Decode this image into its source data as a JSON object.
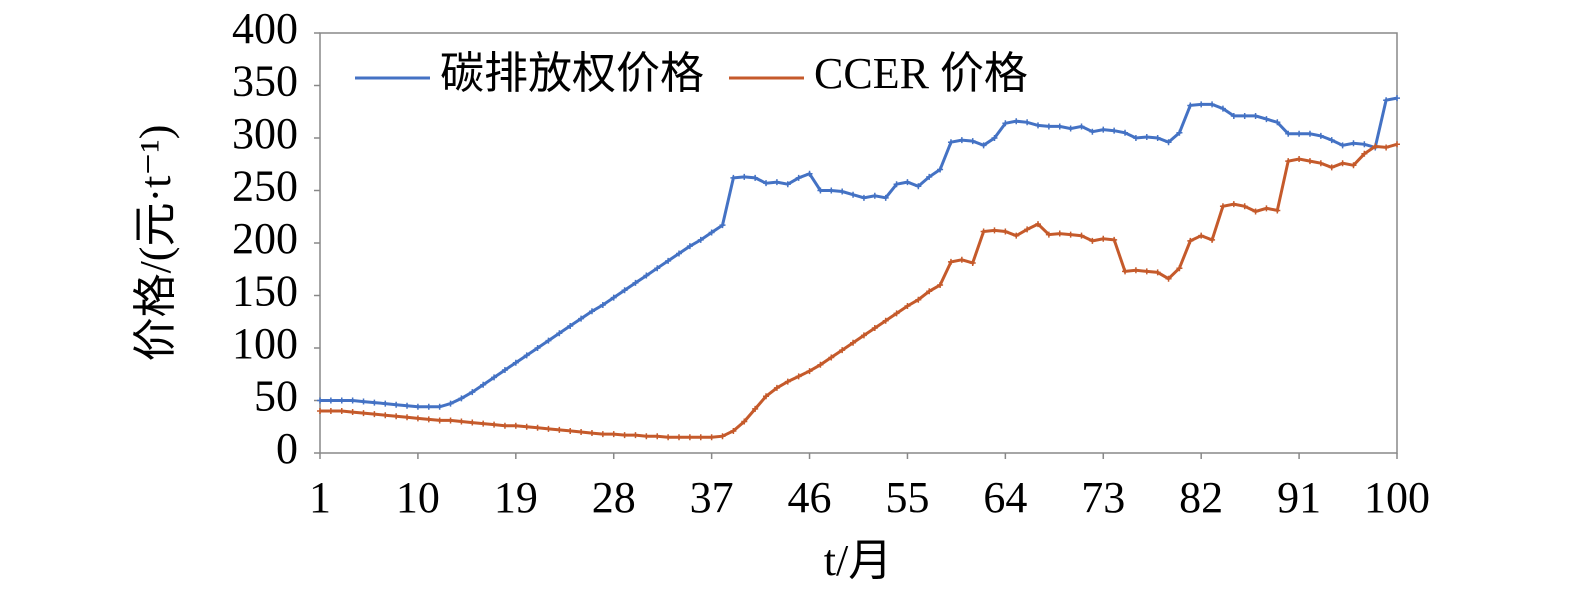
{
  "chart_data": {
    "type": "line",
    "xlabel": "t/月",
    "ylabel": "价格/(元·t⁻¹)",
    "x": [
      1,
      2,
      3,
      4,
      5,
      6,
      7,
      8,
      9,
      10,
      11,
      12,
      13,
      14,
      15,
      16,
      17,
      18,
      19,
      20,
      21,
      22,
      23,
      24,
      25,
      26,
      27,
      28,
      29,
      30,
      31,
      32,
      33,
      34,
      35,
      36,
      37,
      38,
      39,
      40,
      41,
      42,
      43,
      44,
      45,
      46,
      47,
      48,
      49,
      50,
      51,
      52,
      53,
      54,
      55,
      56,
      57,
      58,
      59,
      60,
      61,
      62,
      63,
      64,
      65,
      66,
      67,
      68,
      69,
      70,
      71,
      72,
      73,
      74,
      75,
      76,
      77,
      78,
      79,
      80,
      81,
      82,
      83,
      84,
      85,
      86,
      87,
      88,
      89,
      90,
      91,
      92,
      93,
      94,
      95,
      96,
      97,
      98,
      99,
      100
    ],
    "series": [
      {
        "name": "碳排放权价格",
        "color": "#4472c4",
        "values": [
          50,
          50,
          50,
          50,
          49,
          48,
          47,
          46,
          45,
          44,
          44,
          44,
          47,
          52,
          58,
          65,
          72,
          79,
          86,
          93,
          100,
          107,
          114,
          121,
          128,
          135,
          141,
          148,
          155,
          162,
          169,
          176,
          183,
          190,
          197,
          203,
          210,
          217,
          262,
          263,
          262,
          257,
          258,
          256,
          262,
          266,
          250,
          250,
          249,
          246,
          243,
          245,
          243,
          256,
          258,
          254,
          263,
          270,
          296,
          298,
          297,
          293,
          300,
          314,
          316,
          315,
          312,
          311,
          311,
          309,
          311,
          306,
          308,
          307,
          305,
          300,
          301,
          300,
          296,
          305,
          331,
          332,
          332,
          328,
          321,
          321,
          321,
          318,
          315,
          304,
          304,
          304,
          302,
          298,
          293,
          295,
          294,
          291,
          336,
          338
        ]
      },
      {
        "name": "CCER 价格",
        "color": "#c55a2b",
        "values": [
          40,
          40,
          40,
          39,
          38,
          37,
          36,
          35,
          34,
          33,
          32,
          31,
          31,
          30,
          29,
          28,
          27,
          26,
          26,
          25,
          24,
          23,
          22,
          21,
          20,
          19,
          18,
          18,
          17,
          17,
          16,
          16,
          15,
          15,
          15,
          15,
          15,
          16,
          21,
          30,
          42,
          54,
          62,
          68,
          73,
          78,
          84,
          91,
          98,
          105,
          112,
          119,
          126,
          133,
          140,
          146,
          154,
          160,
          182,
          184,
          181,
          211,
          212,
          211,
          207,
          213,
          218,
          208,
          209,
          208,
          207,
          202,
          204,
          203,
          173,
          174,
          173,
          172,
          166,
          176,
          202,
          207,
          203,
          235,
          237,
          235,
          230,
          233,
          231,
          278,
          280,
          278,
          276,
          272,
          276,
          274,
          285,
          292,
          291,
          294
        ]
      }
    ],
    "xlim": [
      1,
      100
    ],
    "xticks": [
      1,
      10,
      19,
      28,
      37,
      46,
      55,
      64,
      73,
      82,
      91,
      100
    ],
    "ylim": [
      0,
      400
    ],
    "yticks": [
      0,
      50,
      100,
      150,
      200,
      250,
      300,
      350,
      400
    ],
    "legend": "top-left"
  }
}
